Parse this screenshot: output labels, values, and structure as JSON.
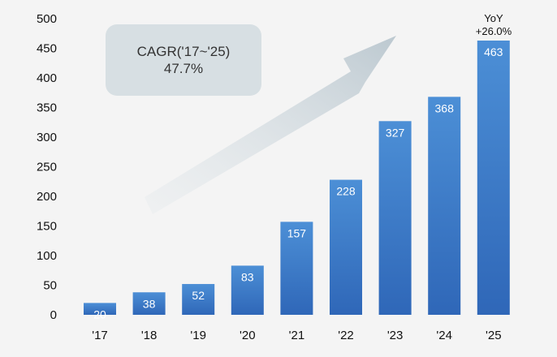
{
  "chart_data": {
    "type": "bar",
    "categories": [
      "'17",
      "'18",
      "'19",
      "'20",
      "'21",
      "'22",
      "'23",
      "'24",
      "'25"
    ],
    "values": [
      20,
      38,
      52,
      83,
      157,
      228,
      327,
      368,
      463
    ],
    "ylim": [
      0,
      500
    ],
    "yticks": [
      0,
      50,
      100,
      150,
      200,
      250,
      300,
      350,
      400,
      450,
      500
    ],
    "grid": false,
    "bar_color_top": "#4c8fd6",
    "bar_color_bottom": "#2f67b8",
    "annotations": {
      "cagr_label": "CAGR('17~'25)",
      "cagr_value": "47.7%",
      "yoy_label": "YoY",
      "yoy_value": "+26.0%"
    }
  }
}
